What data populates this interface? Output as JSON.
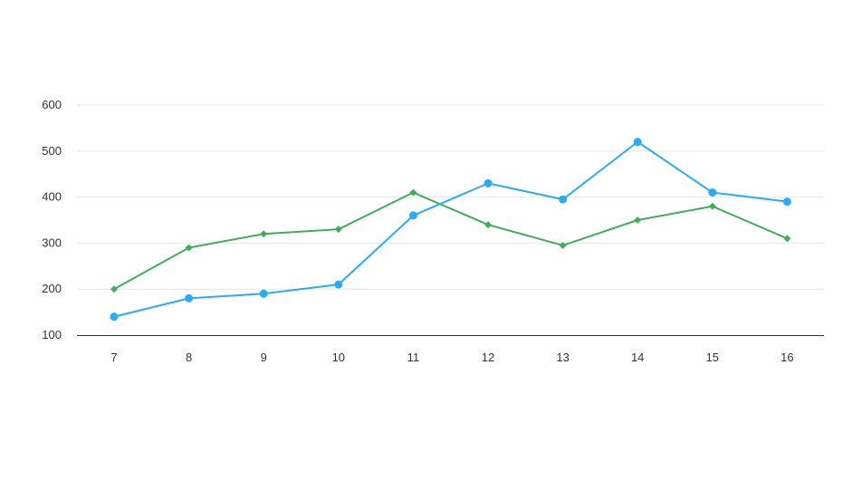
{
  "chart_data": {
    "type": "line",
    "title": "",
    "xlabel": "",
    "ylabel": "",
    "categories": [
      "7",
      "8",
      "9",
      "10",
      "11",
      "12",
      "13",
      "14",
      "15",
      "16"
    ],
    "ylim": [
      100,
      600
    ],
    "yticks": [
      100,
      200,
      300,
      400,
      500,
      600
    ],
    "grid": true,
    "legend": "none",
    "series": [
      {
        "color": "#2eaaf0",
        "marker": "circle",
        "values": [
          140,
          180,
          190,
          210,
          360,
          430,
          395,
          520,
          410,
          390
        ]
      },
      {
        "color": "#43ac5a",
        "marker": "diamond",
        "values": [
          200,
          290,
          320,
          330,
          410,
          340,
          295,
          350,
          380,
          310
        ]
      }
    ]
  }
}
